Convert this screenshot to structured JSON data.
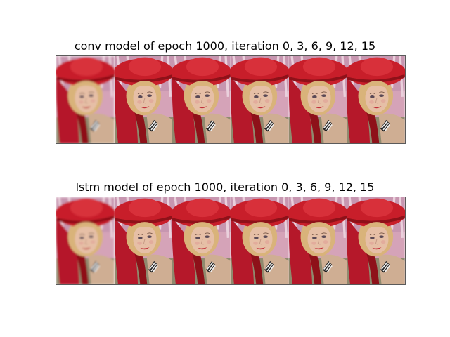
{
  "figure": {
    "panels": [
      {
        "title": "conv model of epoch 1000, iteration 0, 3, 6, 9, 12, 15",
        "frames": [
          "iteration 0",
          "iteration 3",
          "iteration 6",
          "iteration 9",
          "iteration 12",
          "iteration 15"
        ],
        "first_frame_blur": 1.6
      },
      {
        "title": "lstm model of epoch 1000, iteration 0, 3, 6, 9, 12, 15",
        "frames": [
          "iteration 0",
          "iteration 3",
          "iteration 6",
          "iteration 9",
          "iteration 12",
          "iteration 15"
        ],
        "first_frame_blur": 1.6
      }
    ],
    "colors": {
      "hat": "#c81e2a",
      "hat_dark": "#8e1119",
      "scarf": "#b5182a",
      "skin": "#e6bfa6",
      "hair": "#d9b37a",
      "background_pink": "#d5a3b8",
      "shoulder": "#8f8a6e"
    }
  }
}
